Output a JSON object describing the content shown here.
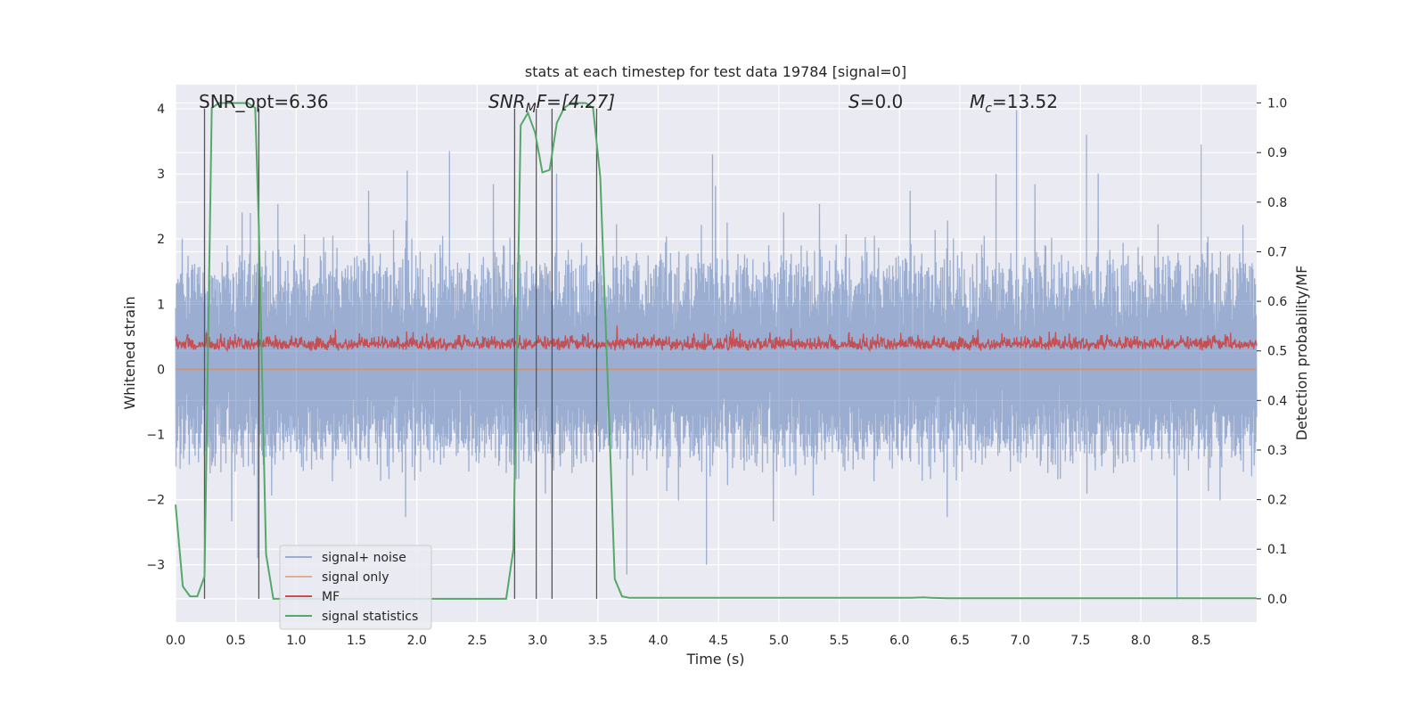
{
  "chart_data": {
    "type": "line",
    "title": "stats at each timestep for test data 19784 [signal=0]",
    "xlabel": "Time (s)",
    "ylabel_left": "Whitened strain",
    "ylabel_right": "Detection probability/MF",
    "xlim": [
      0.0,
      8.96
    ],
    "ylim_left": [
      -3.88,
      4.37
    ],
    "ylim_right": [
      -0.047,
      1.037
    ],
    "x_ticks": [
      "0.0",
      "0.5",
      "1.0",
      "1.5",
      "2.0",
      "2.5",
      "3.0",
      "3.5",
      "4.0",
      "4.5",
      "5.0",
      "5.5",
      "6.0",
      "6.5",
      "7.0",
      "7.5",
      "8.0",
      "8.5"
    ],
    "y_ticks_left": [
      "4",
      "3",
      "2",
      "1",
      "0",
      "−1",
      "−2",
      "−3"
    ],
    "y_ticks_right": [
      "1.0",
      "0.9",
      "0.8",
      "0.7",
      "0.6",
      "0.5",
      "0.4",
      "0.3",
      "0.2",
      "0.1",
      "0.0"
    ],
    "grid": true,
    "legend_position": "lower-left",
    "annotations": {
      "snr_opt": {
        "label": "SNR_opt=6.36"
      },
      "snr_mf": {
        "base": "SNR",
        "sub": "M",
        "rest": "F=[4.27]"
      },
      "s_val": {
        "base": "S",
        "rest": "=0.0"
      },
      "mc_val": {
        "base": "M",
        "sub": "c",
        "rest": "=13.52"
      }
    },
    "vertical_lines_x": [
      0.24,
      0.69,
      2.81,
      2.99,
      3.12,
      3.49
    ],
    "series": [
      {
        "name": "signal+ noise",
        "color": "#4c72b0",
        "axis": "left",
        "envelope_typical": [
          -1.3,
          1.7
        ],
        "peak_values": [
          {
            "x": 0.62,
            "y": 2.4
          },
          {
            "x": 1.92,
            "y": 3.05
          },
          {
            "x": 2.27,
            "y": 3.35
          },
          {
            "x": 4.45,
            "y": 3.3
          },
          {
            "x": 6.8,
            "y": 3.0
          },
          {
            "x": 6.97,
            "y": 3.98
          },
          {
            "x": 7.55,
            "y": 3.6
          },
          {
            "x": 8.5,
            "y": 3.45
          },
          {
            "x": 8.3,
            "y": -3.53
          },
          {
            "x": 3.74,
            "y": -3.15
          },
          {
            "x": 4.4,
            "y": -3.0
          },
          {
            "x": 0.68,
            "y": -2.9
          }
        ]
      },
      {
        "name": "signal only",
        "color": "#dd8452",
        "axis": "left",
        "values_constant": 0.0
      },
      {
        "name": "MF",
        "color": "#c44e52",
        "axis": "right",
        "envelope_typical": [
          0.5,
          0.56
        ]
      },
      {
        "name": "signal statistics",
        "color": "#55a868",
        "axis": "right",
        "x": [
          0.0,
          0.06,
          0.12,
          0.18,
          0.24,
          0.3,
          0.36,
          0.42,
          0.48,
          0.54,
          0.6,
          0.66,
          0.69,
          0.75,
          0.81,
          0.9,
          1.2,
          2.0,
          2.5,
          2.74,
          2.8,
          2.86,
          2.92,
          2.98,
          3.04,
          3.1,
          3.16,
          3.22,
          3.28,
          3.34,
          3.4,
          3.46,
          3.52,
          3.58,
          3.64,
          3.7,
          3.76,
          4.0,
          5.0,
          6.0,
          6.1,
          6.2,
          6.26,
          6.4,
          7.0,
          8.0,
          8.96
        ],
        "y": [
          0.19,
          0.025,
          0.005,
          0.005,
          0.045,
          0.99,
          1.0,
          1.0,
          1.0,
          1.0,
          1.0,
          0.99,
          0.75,
          0.09,
          0.0,
          0.0,
          0.0,
          0.0,
          0.0,
          0.0,
          0.1,
          0.955,
          0.98,
          0.94,
          0.86,
          0.865,
          0.96,
          0.99,
          1.0,
          1.0,
          1.0,
          0.99,
          0.85,
          0.45,
          0.04,
          0.005,
          0.002,
          0.002,
          0.002,
          0.002,
          0.002,
          0.003,
          0.002,
          0.001,
          0.001,
          0.001,
          0.001
        ]
      }
    ]
  }
}
